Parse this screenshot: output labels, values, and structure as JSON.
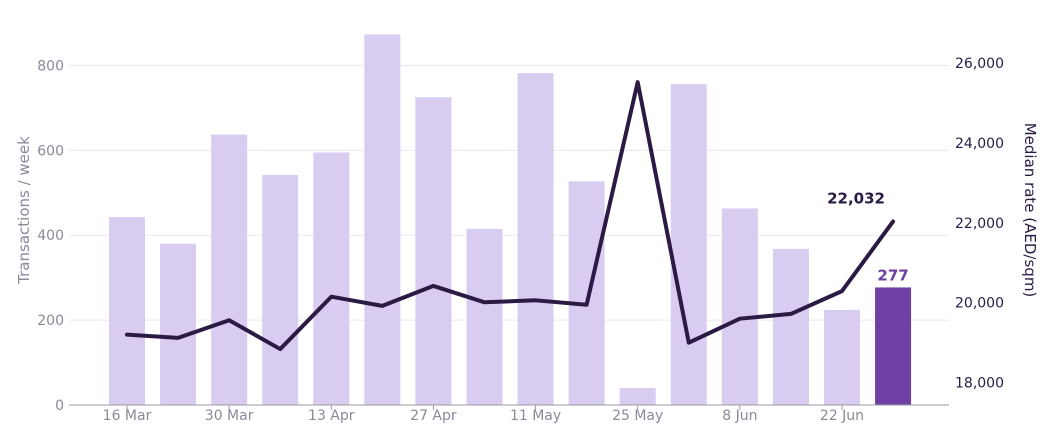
{
  "chart_data": {
    "type": "bar",
    "x_tick_labels": [
      "16 Mar",
      "30 Mar",
      "13 Apr",
      "27 Apr",
      "11 May",
      "25 May",
      "8 Jun",
      "22 Jun"
    ],
    "y_left": {
      "label": "Transactions / week",
      "ticks": [
        0,
        200,
        400,
        600,
        800
      ],
      "range": [
        0,
        900
      ]
    },
    "y_right": {
      "label": "Median rate (AED/sqm)",
      "ticks": [
        "18,000",
        "20,000",
        "22,000",
        "24,000",
        "26,000"
      ],
      "tick_values": [
        18000,
        20000,
        22000,
        24000,
        26000
      ],
      "range": [
        17440,
        27000
      ]
    },
    "series": [
      {
        "type": "bar",
        "axis": "left",
        "values": [
          443,
          380,
          637,
          542,
          595,
          873,
          725,
          415,
          782,
          527,
          40,
          756,
          463,
          368,
          224,
          277
        ],
        "color": "#d8ccf1",
        "highlight_color": "#6f3fa5",
        "highlight_last": true
      },
      {
        "type": "line",
        "axis": "right",
        "values": [
          19200,
          19120,
          19560,
          18840,
          20150,
          19920,
          20420,
          20010,
          20060,
          19950,
          25520,
          19000,
          19600,
          19720,
          20290,
          22032
        ],
        "color": "#2a1a44"
      }
    ],
    "callouts": {
      "line_last": "22,032",
      "bar_last": "277"
    },
    "grid": true,
    "legend": "none"
  }
}
